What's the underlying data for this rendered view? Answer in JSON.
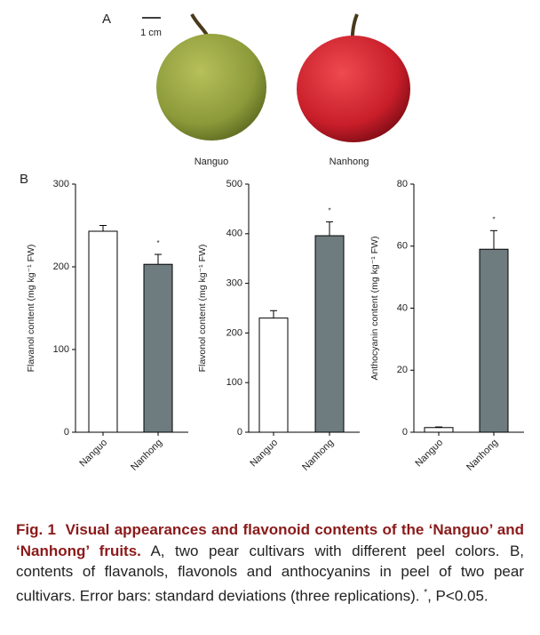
{
  "panel_a": {
    "label": "A",
    "scale_bar": "1 cm",
    "fruits": [
      "Nanguo",
      "Nanhong"
    ]
  },
  "panel_b": {
    "label": "B"
  },
  "chart_data": [
    {
      "type": "bar",
      "ylabel": "Flavanol content (mg kg⁻¹ FW)",
      "categories": [
        "Nanguo",
        "Nanhong"
      ],
      "values": [
        243,
        203
      ],
      "errors": [
        7,
        12
      ],
      "colors": [
        "#ffffff",
        "#6e7c80"
      ],
      "annotation": "*",
      "ylim": [
        0,
        300
      ],
      "yticks": [
        0,
        100,
        200,
        300
      ]
    },
    {
      "type": "bar",
      "ylabel": "Flavonol content (mg kg⁻¹ FW)",
      "categories": [
        "Nanguo",
        "Nanhong"
      ],
      "values": [
        230,
        396
      ],
      "errors": [
        15,
        28
      ],
      "colors": [
        "#ffffff",
        "#6e7c80"
      ],
      "annotation": "*",
      "ylim": [
        0,
        500
      ],
      "yticks": [
        0,
        100,
        200,
        300,
        400,
        500
      ]
    },
    {
      "type": "bar",
      "ylabel": "Anthocyanin content (mg kg⁻¹ FW)",
      "categories": [
        "Nanguo",
        "Nanhong"
      ],
      "values": [
        1.5,
        59
      ],
      "errors": [
        0.2,
        6
      ],
      "colors": [
        "#ffffff",
        "#6e7c80"
      ],
      "annotation": "*",
      "ylim": [
        0,
        80
      ],
      "yticks": [
        0,
        20,
        40,
        60,
        80
      ]
    }
  ],
  "caption": {
    "label": "Fig. 1",
    "title": "Visual appearances and flavonoid contents of the ‘Nanguo’ and ‘Nanhong’ fruits.",
    "text": "A, two pear cultivars with different peel colors.  B, contents of flavanols, flavonols and anthocyanins in peel of two pear cultivars.  Error bars: standard deviations (three replications).",
    "sig_mark": "*",
    "sig_text": ", P<0.05."
  }
}
